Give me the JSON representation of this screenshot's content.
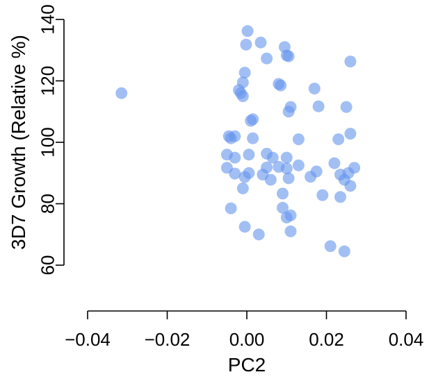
{
  "chart_data": {
    "type": "scatter",
    "xlabel": "PC2",
    "ylabel": "3D7 Growth (Relative %)",
    "xlim": [
      -0.04,
      0.04
    ],
    "ylim": [
      60,
      140
    ],
    "xticks": [
      -0.04,
      -0.02,
      0.0,
      0.02,
      0.04
    ],
    "xtick_labels": [
      "−0.04",
      "−0.02",
      "0.00",
      "0.02",
      "0.04"
    ],
    "yticks": [
      60,
      80,
      100,
      120,
      140
    ],
    "ytick_labels": [
      "60",
      "80",
      "100",
      "120",
      "140"
    ],
    "grid": false,
    "point_color": "#6495ED",
    "point_opacity": 0.6,
    "points": [
      {
        "x": -0.0315,
        "y": 116.0
      },
      {
        "x": 0.0002,
        "y": 136.2
      },
      {
        "x": -0.0002,
        "y": 131.8
      },
      {
        "x": 0.0035,
        "y": 132.5
      },
      {
        "x": 0.005,
        "y": 127.3
      },
      {
        "x": 0.0095,
        "y": 131.0
      },
      {
        "x": 0.01,
        "y": 128.3
      },
      {
        "x": 0.0105,
        "y": 128.0
      },
      {
        "x": 0.026,
        "y": 126.3
      },
      {
        "x": -0.0005,
        "y": 122.7
      },
      {
        "x": -0.001,
        "y": 119.5
      },
      {
        "x": 0.008,
        "y": 119.0
      },
      {
        "x": 0.0085,
        "y": 118.5
      },
      {
        "x": -0.002,
        "y": 117.0
      },
      {
        "x": -0.0015,
        "y": 116.0
      },
      {
        "x": -0.001,
        "y": 115.0
      },
      {
        "x": 0.017,
        "y": 117.5
      },
      {
        "x": 0.001,
        "y": 107.0
      },
      {
        "x": 0.0015,
        "y": 107.5
      },
      {
        "x": 0.011,
        "y": 111.5
      },
      {
        "x": 0.0105,
        "y": 110.0
      },
      {
        "x": 0.018,
        "y": 111.7
      },
      {
        "x": 0.025,
        "y": 111.5
      },
      {
        "x": -0.0045,
        "y": 102.0
      },
      {
        "x": -0.004,
        "y": 101.3
      },
      {
        "x": -0.003,
        "y": 102.0
      },
      {
        "x": 0.0015,
        "y": 101.3
      },
      {
        "x": 0.013,
        "y": 101.0
      },
      {
        "x": 0.023,
        "y": 101.0
      },
      {
        "x": 0.026,
        "y": 102.8
      },
      {
        "x": -0.005,
        "y": 96.0
      },
      {
        "x": -0.003,
        "y": 95.0
      },
      {
        "x": 0.0005,
        "y": 96.0
      },
      {
        "x": 0.005,
        "y": 96.3
      },
      {
        "x": 0.0065,
        "y": 95.0
      },
      {
        "x": 0.01,
        "y": 95.0
      },
      {
        "x": -0.005,
        "y": 91.7
      },
      {
        "x": -0.003,
        "y": 89.8
      },
      {
        "x": -0.0005,
        "y": 88.7
      },
      {
        "x": 0.0005,
        "y": 90.0
      },
      {
        "x": 0.004,
        "y": 89.5
      },
      {
        "x": 0.005,
        "y": 91.8
      },
      {
        "x": 0.006,
        "y": 87.8
      },
      {
        "x": 0.008,
        "y": 92.0
      },
      {
        "x": 0.01,
        "y": 91.5
      },
      {
        "x": 0.0105,
        "y": 88.3
      },
      {
        "x": 0.013,
        "y": 92.5
      },
      {
        "x": 0.016,
        "y": 88.8
      },
      {
        "x": 0.0175,
        "y": 90.5
      },
      {
        "x": 0.022,
        "y": 93.2
      },
      {
        "x": 0.0235,
        "y": 89.5
      },
      {
        "x": 0.0245,
        "y": 87.8
      },
      {
        "x": 0.0255,
        "y": 90.0
      },
      {
        "x": 0.027,
        "y": 91.7
      },
      {
        "x": 0.026,
        "y": 85.8
      },
      {
        "x": -0.001,
        "y": 85.0
      },
      {
        "x": 0.009,
        "y": 83.3
      },
      {
        "x": 0.019,
        "y": 82.8
      },
      {
        "x": 0.0235,
        "y": 82.2
      },
      {
        "x": -0.004,
        "y": 78.5
      },
      {
        "x": 0.009,
        "y": 78.7
      },
      {
        "x": 0.01,
        "y": 75.5
      },
      {
        "x": 0.011,
        "y": 76.2
      },
      {
        "x": -0.0005,
        "y": 72.5
      },
      {
        "x": 0.003,
        "y": 70.0
      },
      {
        "x": 0.011,
        "y": 71.0
      },
      {
        "x": 0.021,
        "y": 66.2
      },
      {
        "x": 0.0245,
        "y": 64.5
      }
    ]
  }
}
